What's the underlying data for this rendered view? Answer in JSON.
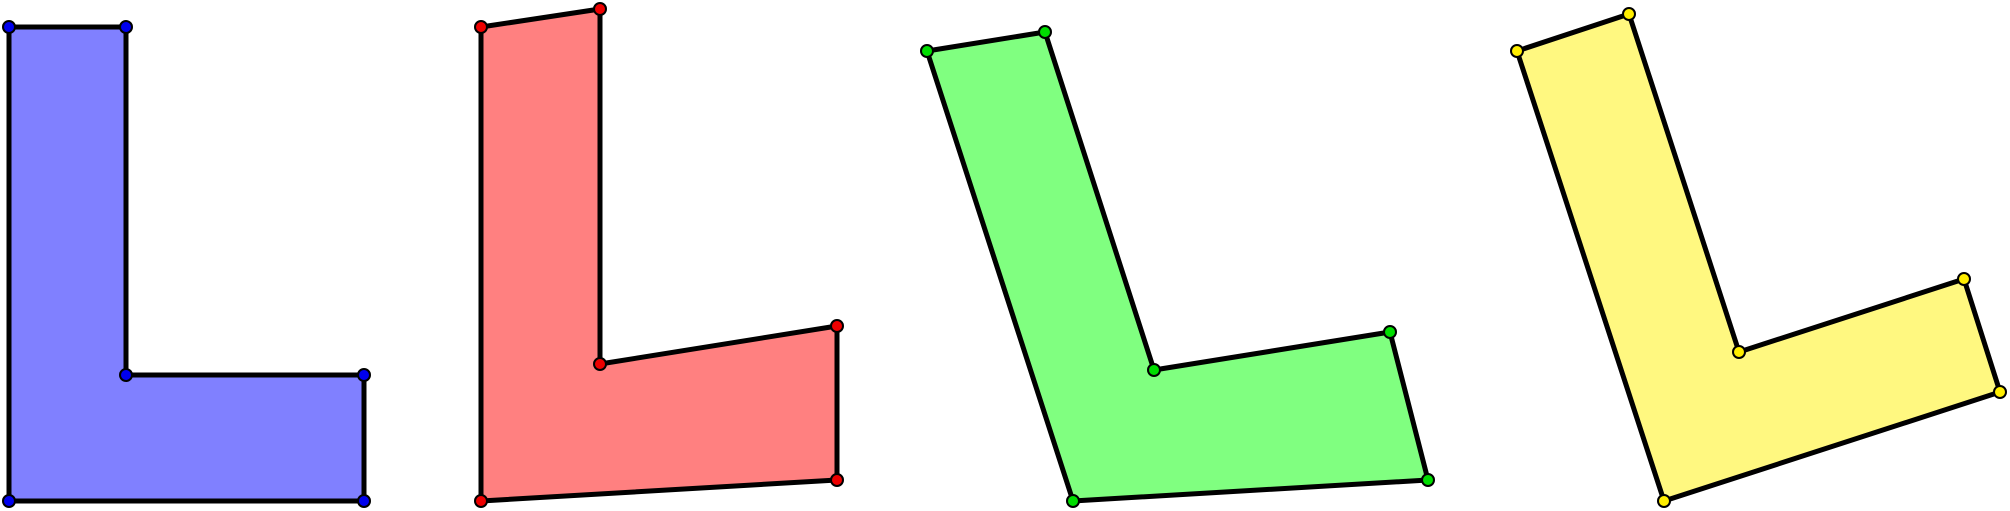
{
  "diagram": {
    "shapes": [
      {
        "name": "blue-l-shape",
        "fill": "#8080ff",
        "vertex_color": "#0000ee"
      },
      {
        "name": "red-l-shape",
        "fill": "#ff8080",
        "vertex_color": "#ee0000"
      },
      {
        "name": "green-l-shape",
        "fill": "#80ff80",
        "vertex_color": "#00dd00"
      },
      {
        "name": "yellow-l-shape",
        "fill": "#fff880",
        "vertex_color": "#ffee00"
      }
    ]
  }
}
